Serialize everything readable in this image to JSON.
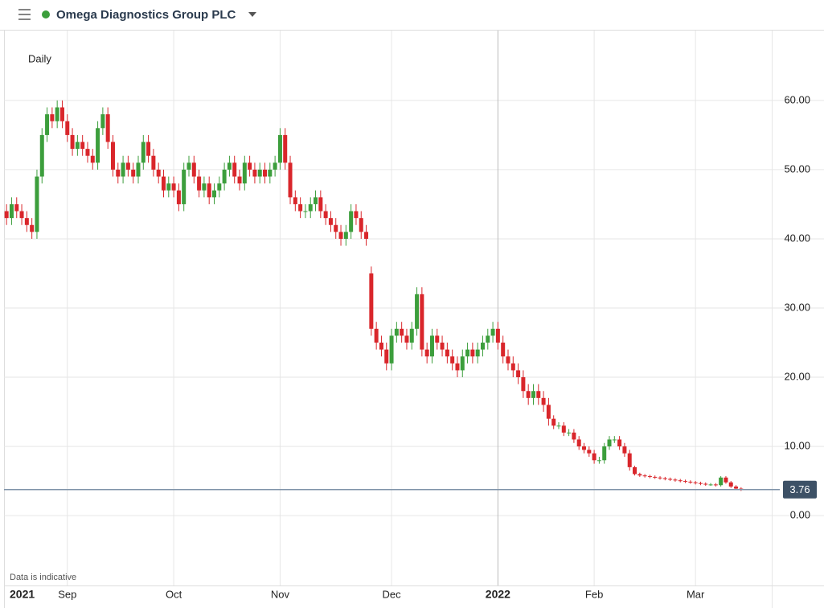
{
  "chart_data": {
    "type": "candlestick",
    "title": "Omega Diagnostics Group PLC",
    "interval": "Daily",
    "note": "Data is indicative",
    "up_color": "#3c9e3c",
    "down_color": "#d9262b",
    "grid": true,
    "last_price": 3.76,
    "ylim": [
      -10.1,
      70.1
    ],
    "yticks": [
      {
        "value": 0,
        "label": "0.00"
      },
      {
        "value": 10,
        "label": "10.00"
      },
      {
        "value": 20,
        "label": "20.00"
      },
      {
        "value": 30,
        "label": "30.00"
      },
      {
        "value": 40,
        "label": "40.00"
      },
      {
        "value": 50,
        "label": "50.00"
      },
      {
        "value": 60,
        "label": "60.00"
      }
    ],
    "categories": [
      null,
      null,
      null,
      "2021",
      null,
      null,
      null,
      null,
      null,
      null,
      null,
      null,
      "Sep",
      null,
      null,
      null,
      null,
      null,
      null,
      null,
      null,
      null,
      null,
      null,
      null,
      null,
      null,
      null,
      null,
      null,
      null,
      null,
      null,
      "Oct",
      null,
      null,
      null,
      null,
      null,
      null,
      null,
      null,
      null,
      null,
      null,
      null,
      null,
      null,
      null,
      null,
      null,
      null,
      null,
      null,
      "Nov",
      null,
      null,
      null,
      null,
      null,
      null,
      null,
      null,
      null,
      null,
      null,
      null,
      null,
      null,
      null,
      null,
      null,
      null,
      null,
      null,
      null,
      "Dec",
      null,
      null,
      null,
      null,
      null,
      null,
      null,
      null,
      null,
      null,
      null,
      null,
      null,
      null,
      null,
      null,
      null,
      null,
      null,
      null,
      "2022",
      null,
      null,
      null,
      null,
      null,
      null,
      null,
      null,
      null,
      null,
      null,
      null,
      null,
      null,
      null,
      null,
      null,
      null,
      "Feb",
      null,
      null,
      null,
      null,
      null,
      null,
      null,
      null,
      null,
      null,
      null,
      null,
      null,
      null,
      null,
      null,
      null,
      null,
      null,
      "Mar",
      null,
      null,
      null,
      null,
      null,
      null,
      null,
      null,
      null
    ],
    "open": [
      44,
      43,
      45,
      44,
      43,
      42,
      41,
      49,
      55,
      58,
      57,
      59,
      57,
      55,
      53,
      54,
      53,
      52,
      51,
      56,
      58,
      54,
      50,
      49,
      51,
      50,
      49,
      51,
      54,
      52,
      50,
      49,
      47,
      48,
      47,
      45,
      50,
      51,
      49,
      47,
      48,
      46,
      47,
      48,
      50,
      51,
      49,
      48,
      51,
      50,
      49,
      50,
      49,
      50,
      51,
      55,
      51,
      46,
      45,
      44,
      44,
      45,
      46,
      44,
      43,
      42,
      41,
      40,
      41,
      44,
      43,
      41,
      35,
      27,
      25,
      24,
      22,
      26,
      27,
      26,
      25,
      27,
      32,
      24,
      23,
      26,
      25,
      24,
      23,
      22,
      21,
      23,
      24,
      23,
      24,
      25,
      26,
      27,
      25,
      23,
      22,
      21,
      20,
      18,
      17,
      18,
      17,
      16,
      14,
      13,
      13,
      12,
      12,
      11,
      10,
      9.5,
      9,
      8,
      8,
      10,
      11,
      11,
      10,
      9,
      7,
      6,
      5.8,
      5.7,
      5.6,
      5.5,
      5.4,
      5.3,
      5.2,
      5.1,
      5,
      4.9,
      4.8,
      4.7,
      4.6,
      4.5,
      4.5,
      4.4,
      5.5,
      4.8,
      4.2,
      3.9
    ],
    "high": [
      45,
      46,
      46,
      45,
      44,
      43,
      50,
      56,
      59,
      59,
      60,
      60,
      58,
      56,
      55,
      55,
      54,
      53,
      57,
      59,
      59,
      55,
      51,
      52,
      52,
      51,
      52,
      55,
      55,
      53,
      51,
      50,
      49,
      49,
      48,
      51,
      52,
      52,
      50,
      49,
      49,
      48,
      49,
      51,
      52,
      52,
      50,
      52,
      52,
      51,
      51,
      51,
      51,
      52,
      56,
      56,
      52,
      47,
      46,
      45,
      46,
      47,
      47,
      45,
      44,
      43,
      42,
      42,
      45,
      45,
      44,
      42,
      36,
      28,
      26,
      25,
      27,
      28,
      28,
      27,
      28,
      33,
      33,
      25,
      27,
      27,
      26,
      25,
      24,
      23,
      24,
      25,
      25,
      25,
      26,
      27,
      28,
      28,
      26,
      24,
      23,
      22,
      21,
      19,
      19,
      19,
      18,
      17,
      14.5,
      13.5,
      13.5,
      12.5,
      12.5,
      11.5,
      10.5,
      10,
      9.5,
      8.5,
      10.5,
      11.5,
      11.5,
      11.5,
      10.5,
      9.5,
      7.2,
      6.2,
      6,
      5.9,
      5.8,
      5.7,
      5.6,
      5.5,
      5.4,
      5.3,
      5.2,
      5.1,
      5,
      4.9,
      4.8,
      4.7,
      4.7,
      5.7,
      5.7,
      5,
      4.4,
      4.1
    ],
    "low": [
      42,
      42,
      43,
      42,
      41,
      40,
      40,
      48,
      54,
      56,
      56,
      56,
      54,
      52,
      52,
      52,
      51,
      50,
      50,
      55,
      53,
      49,
      48,
      48,
      49,
      48,
      48,
      50,
      51,
      49,
      48,
      46,
      46,
      46,
      44,
      44,
      49,
      48,
      46,
      46,
      45,
      45,
      46,
      47,
      49,
      48,
      47,
      47,
      49,
      48,
      48,
      48,
      48,
      49,
      50,
      50,
      45,
      44,
      43,
      43,
      43,
      44,
      43,
      42,
      41,
      40,
      39,
      39,
      40,
      42,
      40,
      39,
      26,
      24,
      23,
      21,
      21,
      25,
      25,
      24,
      24,
      26,
      23,
      22,
      22,
      24,
      23,
      22,
      21,
      20,
      20,
      22,
      22,
      22,
      23,
      24,
      25,
      24,
      22,
      21,
      20,
      19,
      17,
      16,
      16,
      16,
      15,
      13,
      12.5,
      12.5,
      11.5,
      11.5,
      10.5,
      9.5,
      9,
      8.5,
      7.5,
      7.5,
      7.5,
      9.5,
      10.5,
      9.5,
      8.5,
      6.5,
      5.8,
      5.6,
      5.5,
      5.4,
      5.3,
      5.2,
      5.1,
      5,
      4.9,
      4.8,
      4.7,
      4.6,
      4.5,
      4.4,
      4.3,
      4.3,
      4.2,
      4.2,
      4.6,
      4,
      3.7,
      3.56
    ],
    "close": [
      43,
      45,
      44,
      43,
      42,
      41,
      49,
      55,
      58,
      57,
      59,
      57,
      55,
      53,
      54,
      53,
      52,
      51,
      56,
      58,
      54,
      50,
      49,
      51,
      50,
      49,
      51,
      54,
      52,
      50,
      49,
      47,
      48,
      47,
      45,
      50,
      51,
      49,
      47,
      48,
      46,
      47,
      48,
      50,
      51,
      49,
      48,
      51,
      50,
      49,
      50,
      49,
      50,
      51,
      55,
      51,
      46,
      45,
      44,
      44,
      45,
      46,
      44,
      43,
      42,
      41,
      40,
      41,
      44,
      43,
      41,
      40,
      27,
      25,
      24,
      22,
      26,
      27,
      26,
      25,
      27,
      32,
      24,
      23,
      26,
      25,
      24,
      23,
      22,
      21,
      23,
      24,
      23,
      24,
      25,
      26,
      27,
      25,
      23,
      22,
      21,
      20,
      18,
      17,
      18,
      17,
      16,
      14,
      13,
      13,
      12,
      12,
      11,
      10,
      9.5,
      9,
      8,
      8,
      10,
      11,
      11,
      10,
      9,
      7,
      6,
      5.8,
      5.7,
      5.6,
      5.5,
      5.4,
      5.3,
      5.2,
      5.1,
      5,
      4.9,
      4.8,
      4.7,
      4.6,
      4.5,
      4.5,
      4.4,
      5.5,
      4.8,
      4.2,
      3.9,
      3.76
    ]
  }
}
